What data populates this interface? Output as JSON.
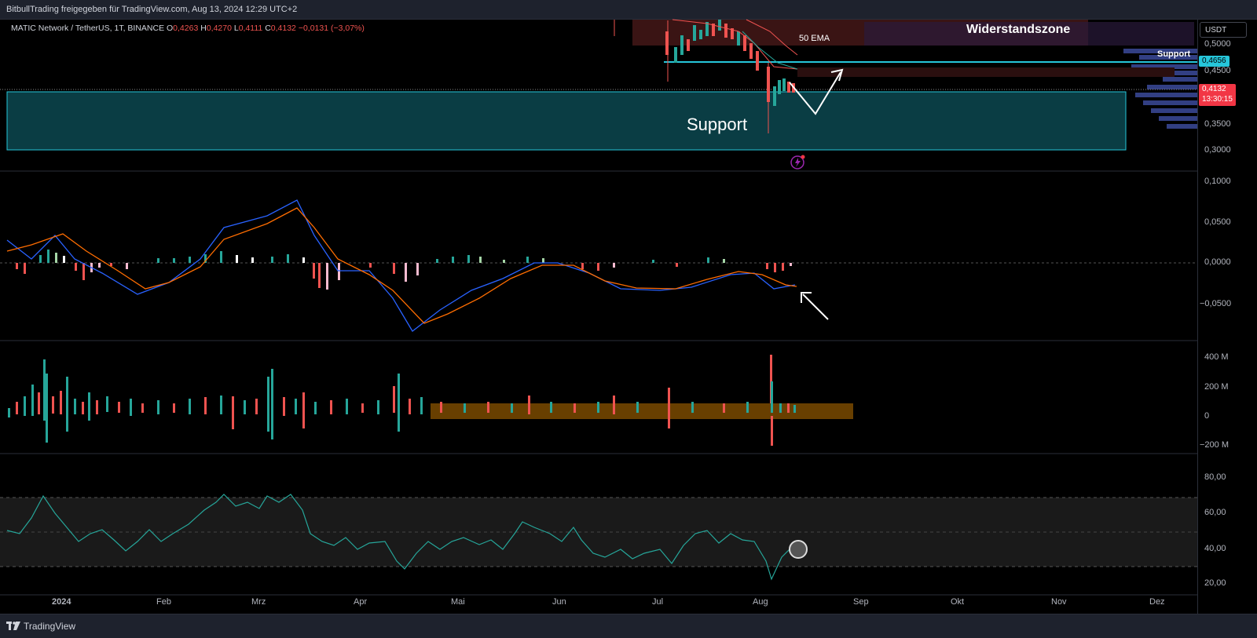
{
  "header": {
    "title": "BitbullTrading freigegeben für TradingView.com, Aug 13, 2024 12:29 UTC+2"
  },
  "legend": {
    "symbol": "MATIC Network / TetherUS, 1T, BINANCE",
    "open_label": "O",
    "open": "0,4263",
    "high_label": "H",
    "high": "0,4270",
    "low_label": "L",
    "low": "0,4111",
    "close_label": "C",
    "close": "0,4132",
    "change": "−0,0131 (−3,07%)"
  },
  "currency_button": "USDT",
  "annotations": {
    "resistance_zone": "Widerstandszone",
    "ema_label": "50 EMA",
    "support_line_label": "Support",
    "support_zone_label": "Support"
  },
  "price_axis": {
    "ticks": [
      "0,5000",
      "0,4500",
      "0,3500",
      "0,3000"
    ],
    "support_tag": "0,4656",
    "last_price": "0,4132",
    "countdown": "13:30:15"
  },
  "macd_axis": {
    "ticks": [
      "0,1000",
      "0,0500",
      "0,0000",
      "−0,0500"
    ]
  },
  "volume_axis": {
    "ticks": [
      "400 M",
      "200 M",
      "0",
      "−200 M"
    ]
  },
  "rsi_axis": {
    "ticks": [
      "80,00",
      "60,00",
      "40,00",
      "20,00"
    ]
  },
  "time_axis": {
    "labels": [
      "2024",
      "Feb",
      "Mrz",
      "Apr",
      "Mai",
      "Jun",
      "Jul",
      "Aug",
      "Sep",
      "Okt",
      "Nov",
      "Dez"
    ]
  },
  "footer": {
    "brand": "TradingView"
  },
  "colors": {
    "support_zone": "#0a3d44",
    "support_line": "#26c6da",
    "resistance_zone": "#3a1414",
    "macd": "#2962ff",
    "signal": "#ff6d00",
    "hist_pos": "#26a69a",
    "hist_neg": "#ef5350",
    "rsi": "#26a69a",
    "volume_zone": "#7a4a00"
  }
}
